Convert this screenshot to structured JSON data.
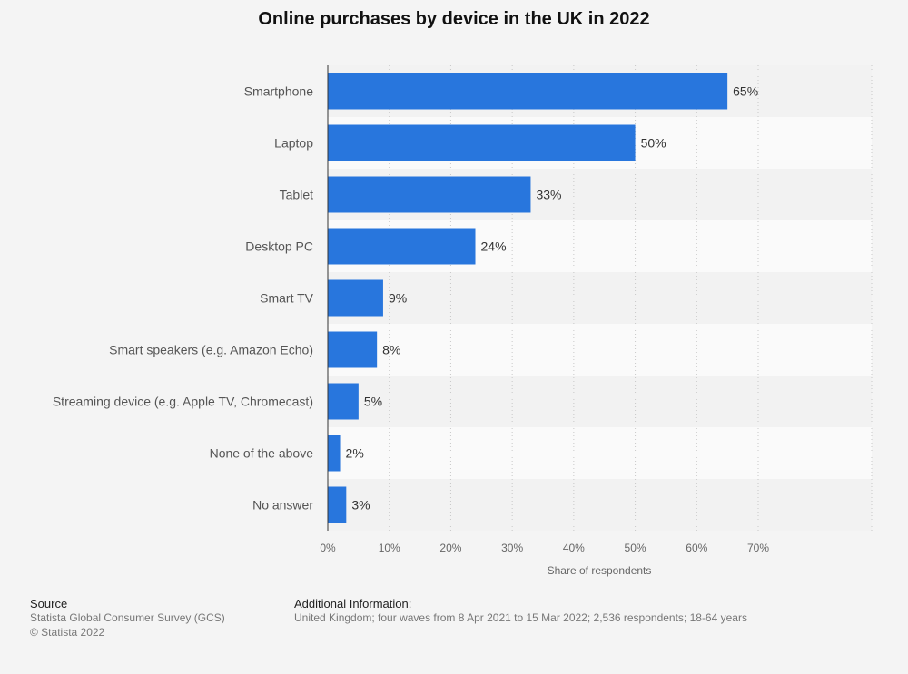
{
  "chart_data": {
    "type": "bar",
    "orientation": "horizontal",
    "title": "Online purchases by device in the UK in 2022",
    "categories": [
      "Smartphone",
      "Laptop",
      "Tablet",
      "Desktop PC",
      "Smart TV",
      "Smart speakers (e.g. Amazon Echo)",
      "Streaming device (e.g. Apple TV, Chromecast)",
      "None of the above",
      "No answer"
    ],
    "values": [
      65,
      50,
      33,
      24,
      9,
      8,
      5,
      2,
      3
    ],
    "value_labels": [
      "65%",
      "50%",
      "33%",
      "24%",
      "9%",
      "8%",
      "5%",
      "2%",
      "3%"
    ],
    "xlabel": "Share of respondents",
    "ylabel": "",
    "xlim": [
      0,
      80
    ],
    "x_ticks": [
      0,
      10,
      20,
      30,
      40,
      50,
      60,
      70
    ],
    "x_tick_labels": [
      "0%",
      "10%",
      "20%",
      "30%",
      "40%",
      "50%",
      "60%",
      "70%"
    ],
    "grid": true,
    "bar_color": "#2876dd"
  },
  "footer": {
    "source_heading": "Source",
    "source_line1": "Statista Global Consumer Survey (GCS)",
    "source_line2": "© Statista 2022",
    "info_heading": "Additional Information:",
    "info_text": "United Kingdom; four waves from 8 Apr 2021 to 15 Mar 2022; 2,536 respondents; 18-64 years"
  }
}
